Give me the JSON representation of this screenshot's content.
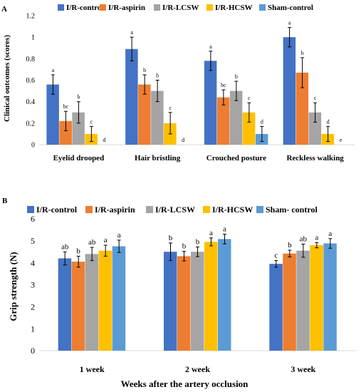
{
  "colors": {
    "I/R-control": "#4472C4",
    "I/R-aspirin": "#ED7D31",
    "I/R-LCSW": "#A5A5A5",
    "I/R-HCSW": "#FFC000",
    "Sham-control": "#5B9BD5",
    "axis": "#d9d9d9",
    "error_bar": "#000000"
  },
  "chart_data": [
    {
      "panel_label": "A",
      "type": "bar",
      "title": "",
      "xlabel": "",
      "ylabel": "Clinical outcomes (scores)",
      "ylim": [
        0,
        1.2
      ],
      "yticks": [
        "0",
        "0.2",
        "0.4",
        "0.6",
        "0.8",
        "1",
        "1.2"
      ],
      "grid": false,
      "legend_position": "top",
      "categories": [
        "Eyelid drooped",
        "Hair bristling",
        "Crouched posture",
        "Reckless walking"
      ],
      "series": [
        {
          "name": "I/R-control",
          "values": [
            0.56,
            0.89,
            0.78,
            1.0
          ],
          "errors": [
            0.09,
            0.11,
            0.09,
            0.09
          ],
          "letters": [
            "a",
            "a",
            "a",
            "a"
          ]
        },
        {
          "name": "I/R-aspirin",
          "values": [
            0.22,
            0.56,
            0.44,
            0.67
          ],
          "errors": [
            0.09,
            0.09,
            0.07,
            0.14
          ],
          "letters": [
            "bc",
            "b",
            "bc",
            "b"
          ]
        },
        {
          "name": "I/R-LCSW",
          "values": [
            0.3,
            0.5,
            0.5,
            0.3
          ],
          "errors": [
            0.1,
            0.1,
            0.09,
            0.09
          ],
          "letters": [
            "b",
            "b",
            "b",
            "c"
          ]
        },
        {
          "name": "I/R-HCSW",
          "values": [
            0.1,
            0.2,
            0.3,
            0.1
          ],
          "errors": [
            0.07,
            0.1,
            0.09,
            0.07
          ],
          "letters": [
            "c",
            "c",
            "c",
            "d"
          ]
        },
        {
          "name": "Sham-control",
          "values": [
            0,
            0,
            0.1,
            0
          ],
          "errors": [
            0,
            0,
            0.07,
            0
          ],
          "letters": [
            "d",
            "d",
            "d",
            "e"
          ]
        }
      ]
    },
    {
      "panel_label": "B",
      "type": "bar",
      "title": "",
      "xlabel": "Weeks after the artery occlusion",
      "ylabel": "Grip strength (N)",
      "ylim": [
        0,
        6
      ],
      "yticks": [
        "0",
        "1",
        "2",
        "3",
        "4",
        "5",
        "6"
      ],
      "grid": false,
      "legend_position": "top",
      "categories": [
        "1 week",
        "2 week",
        "3 week"
      ],
      "series": [
        {
          "name": "I/R-control",
          "values": [
            4.2,
            4.5,
            3.95
          ],
          "errors": [
            0.3,
            0.4,
            0.15
          ],
          "letters": [
            "ab",
            "b",
            "c"
          ]
        },
        {
          "name": "I/R-aspirin",
          "values": [
            4.05,
            4.3,
            4.42
          ],
          "errors": [
            0.25,
            0.22,
            0.15
          ],
          "letters": [
            "b",
            "b",
            "b"
          ]
        },
        {
          "name": "I/R-LCSW",
          "values": [
            4.4,
            4.5,
            4.55
          ],
          "errors": [
            0.3,
            0.22,
            0.3
          ],
          "letters": [
            "ab",
            "b",
            "ab"
          ]
        },
        {
          "name": "I/R-HCSW",
          "values": [
            4.55,
            4.95,
            4.8
          ],
          "errors": [
            0.25,
            0.18,
            0.12
          ],
          "letters": [
            "a",
            "a",
            "a"
          ]
        },
        {
          "name": "Sham- control",
          "values": [
            4.75,
            5.08,
            4.88
          ],
          "errors": [
            0.28,
            0.22,
            0.22
          ],
          "letters": [
            "a",
            "a",
            "a"
          ]
        }
      ]
    }
  ]
}
